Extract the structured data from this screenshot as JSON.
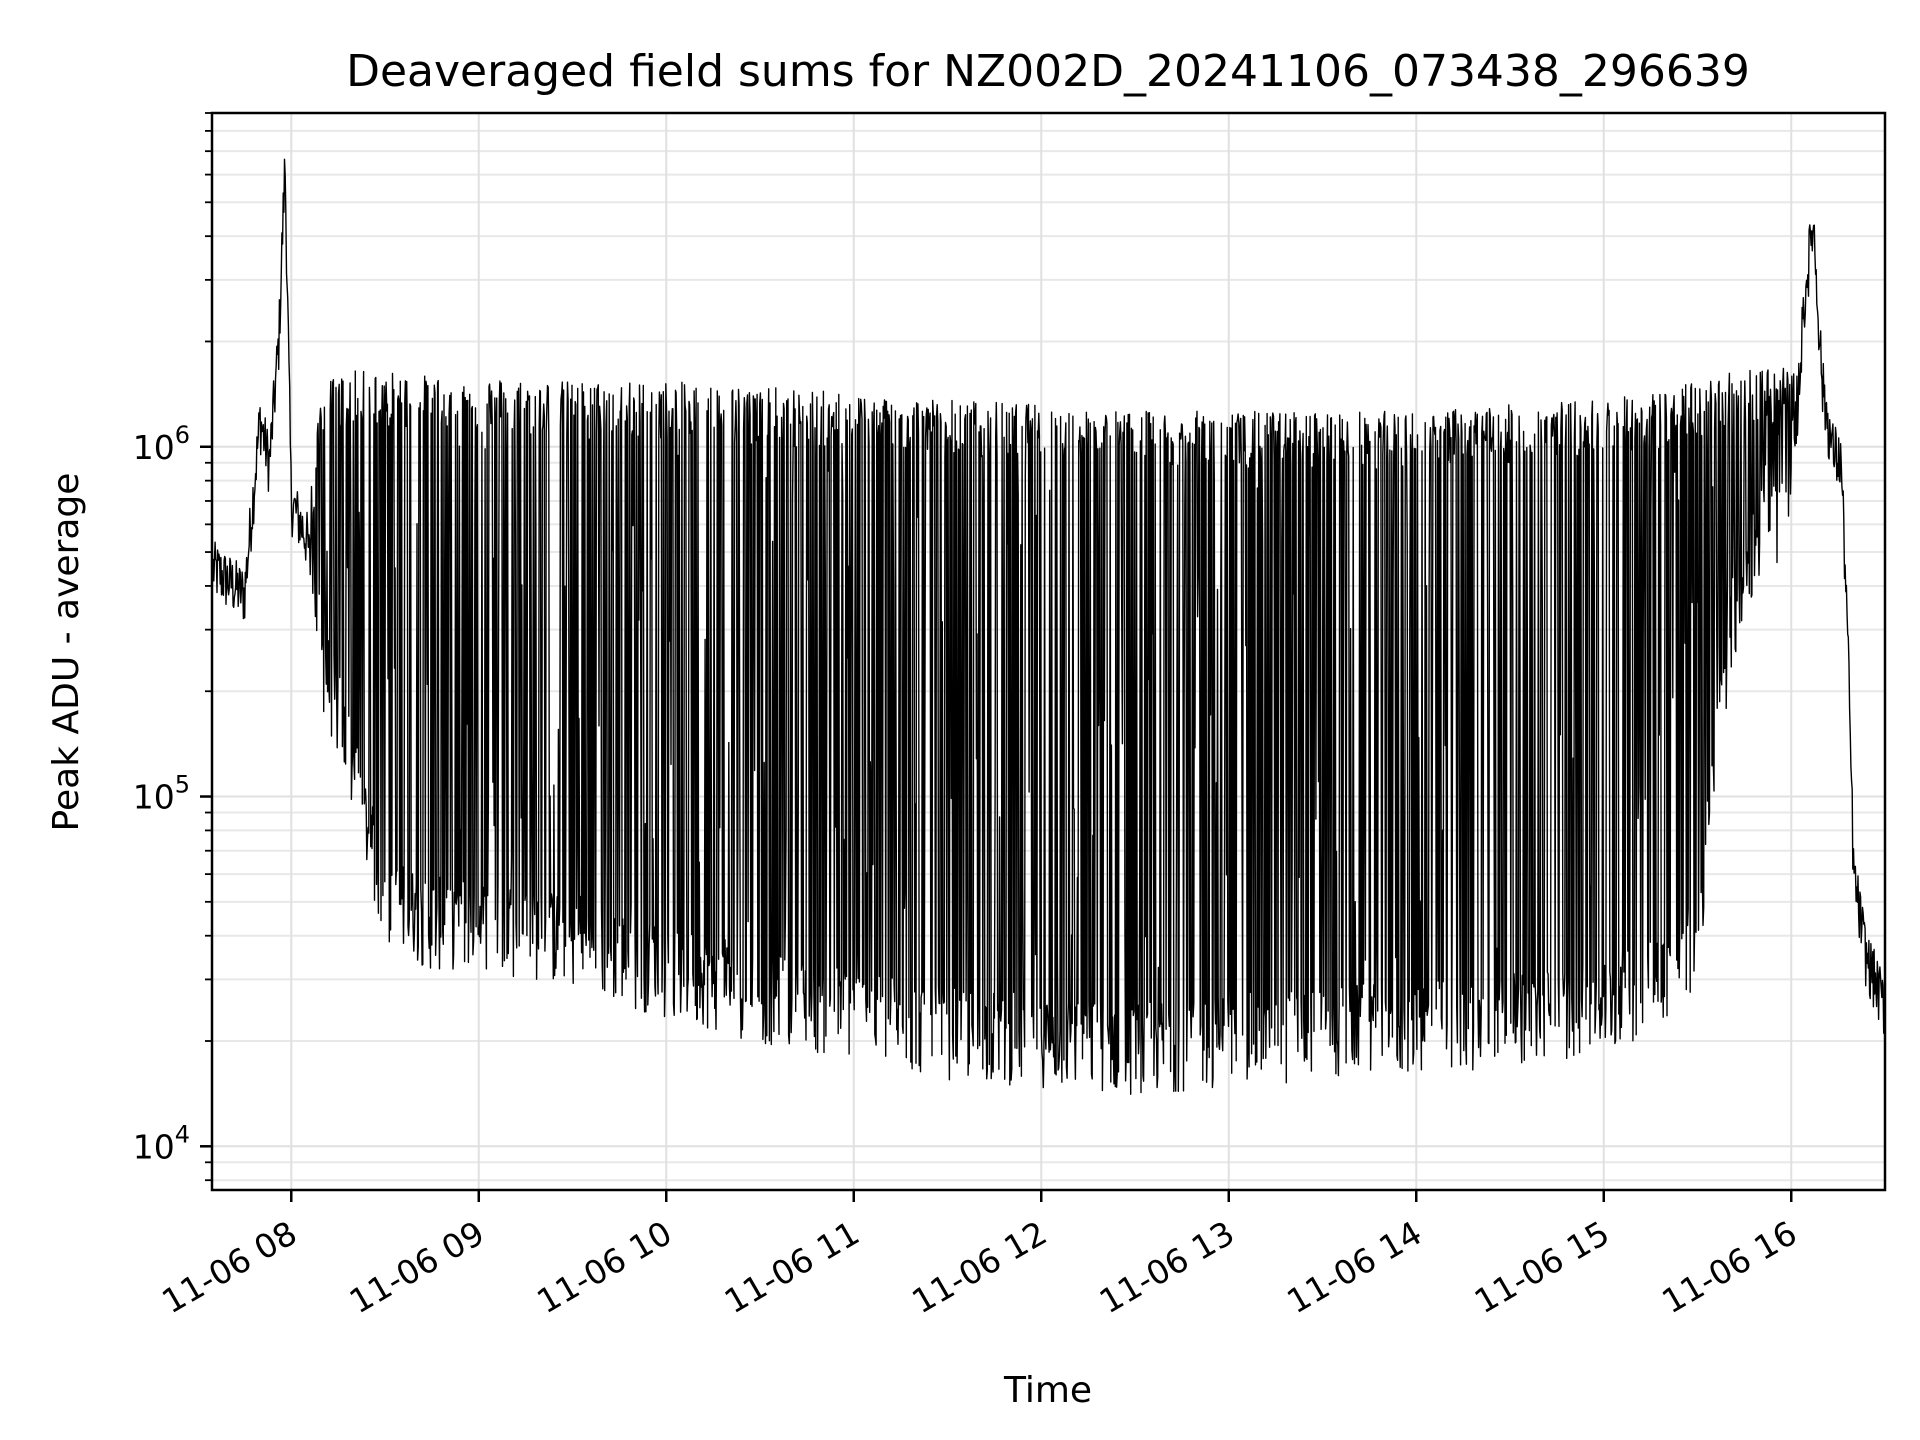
{
  "chart_data": {
    "type": "line",
    "title": "Deaveraged field sums for NZ002D_20241106_073438_296639",
    "xlabel": "Time",
    "ylabel": "Peak ADU - average",
    "y_scale": "log",
    "ylim": [
      7500,
      9000000
    ],
    "xlim": [
      "2024-11-06 07:34:38",
      "2024-11-06 16:30:00"
    ],
    "grid": true,
    "x_tick_labels": [
      "11-06 08",
      "11-06 09",
      "11-06 10",
      "11-06 11",
      "11-06 12",
      "11-06 13",
      "11-06 14",
      "11-06 15",
      "11-06 16"
    ],
    "x_tick_times": [
      "2024-11-06 08:00",
      "2024-11-06 09:00",
      "2024-11-06 10:00",
      "2024-11-06 11:00",
      "2024-11-06 12:00",
      "2024-11-06 13:00",
      "2024-11-06 14:00",
      "2024-11-06 15:00",
      "2024-11-06 16:00"
    ],
    "y_tick_labels": [
      {
        "base": "10",
        "exp": "4",
        "value": 10000
      },
      {
        "base": "10",
        "exp": "5",
        "value": 100000
      },
      {
        "base": "10",
        "exp": "6",
        "value": 1000000
      }
    ],
    "series": [
      {
        "color": "#000000",
        "x": [
          "07:35",
          "07:45",
          "07:50",
          "07:53",
          "07:56",
          "07:58",
          "08:00",
          "08:05",
          "08:10",
          "08:15",
          "08:20",
          "08:30",
          "08:45",
          "09:00",
          "09:30",
          "10:00",
          "10:30",
          "11:00",
          "11:30",
          "12:00",
          "12:30",
          "13:00",
          "13:30",
          "14:00",
          "14:30",
          "15:00",
          "15:15",
          "15:30",
          "15:40",
          "15:50",
          "16:00",
          "16:04",
          "16:07",
          "16:10",
          "16:13",
          "16:16",
          "16:18",
          "16:20",
          "16:24",
          "16:28",
          "16:30"
        ],
        "y_baseline": [
          450000,
          380000,
          1200000,
          900000,
          2000000,
          6500000,
          700000,
          550000,
          250000,
          180000,
          120000,
          52000,
          45000,
          46000,
          40000,
          33000,
          28000,
          25000,
          22000,
          21000,
          20000,
          21000,
          22000,
          23000,
          24000,
          26000,
          30000,
          40000,
          300000,
          600000,
          700000,
          2500000,
          4500000,
          1500000,
          1000000,
          900000,
          300000,
          60000,
          35000,
          28000,
          25000
        ],
        "y_envelope_high": [
          450000,
          380000,
          1200000,
          900000,
          2000000,
          6500000,
          700000,
          550000,
          1400000,
          1450000,
          1500000,
          1500000,
          1450000,
          1450000,
          1400000,
          1400000,
          1350000,
          1300000,
          1250000,
          1200000,
          1150000,
          1150000,
          1150000,
          1150000,
          1200000,
          1250000,
          1300000,
          1400000,
          1500000,
          1600000,
          1500000,
          2500000,
          4500000,
          1500000,
          1000000,
          900000,
          300000,
          60000,
          35000,
          28000,
          25000
        ]
      }
    ]
  }
}
